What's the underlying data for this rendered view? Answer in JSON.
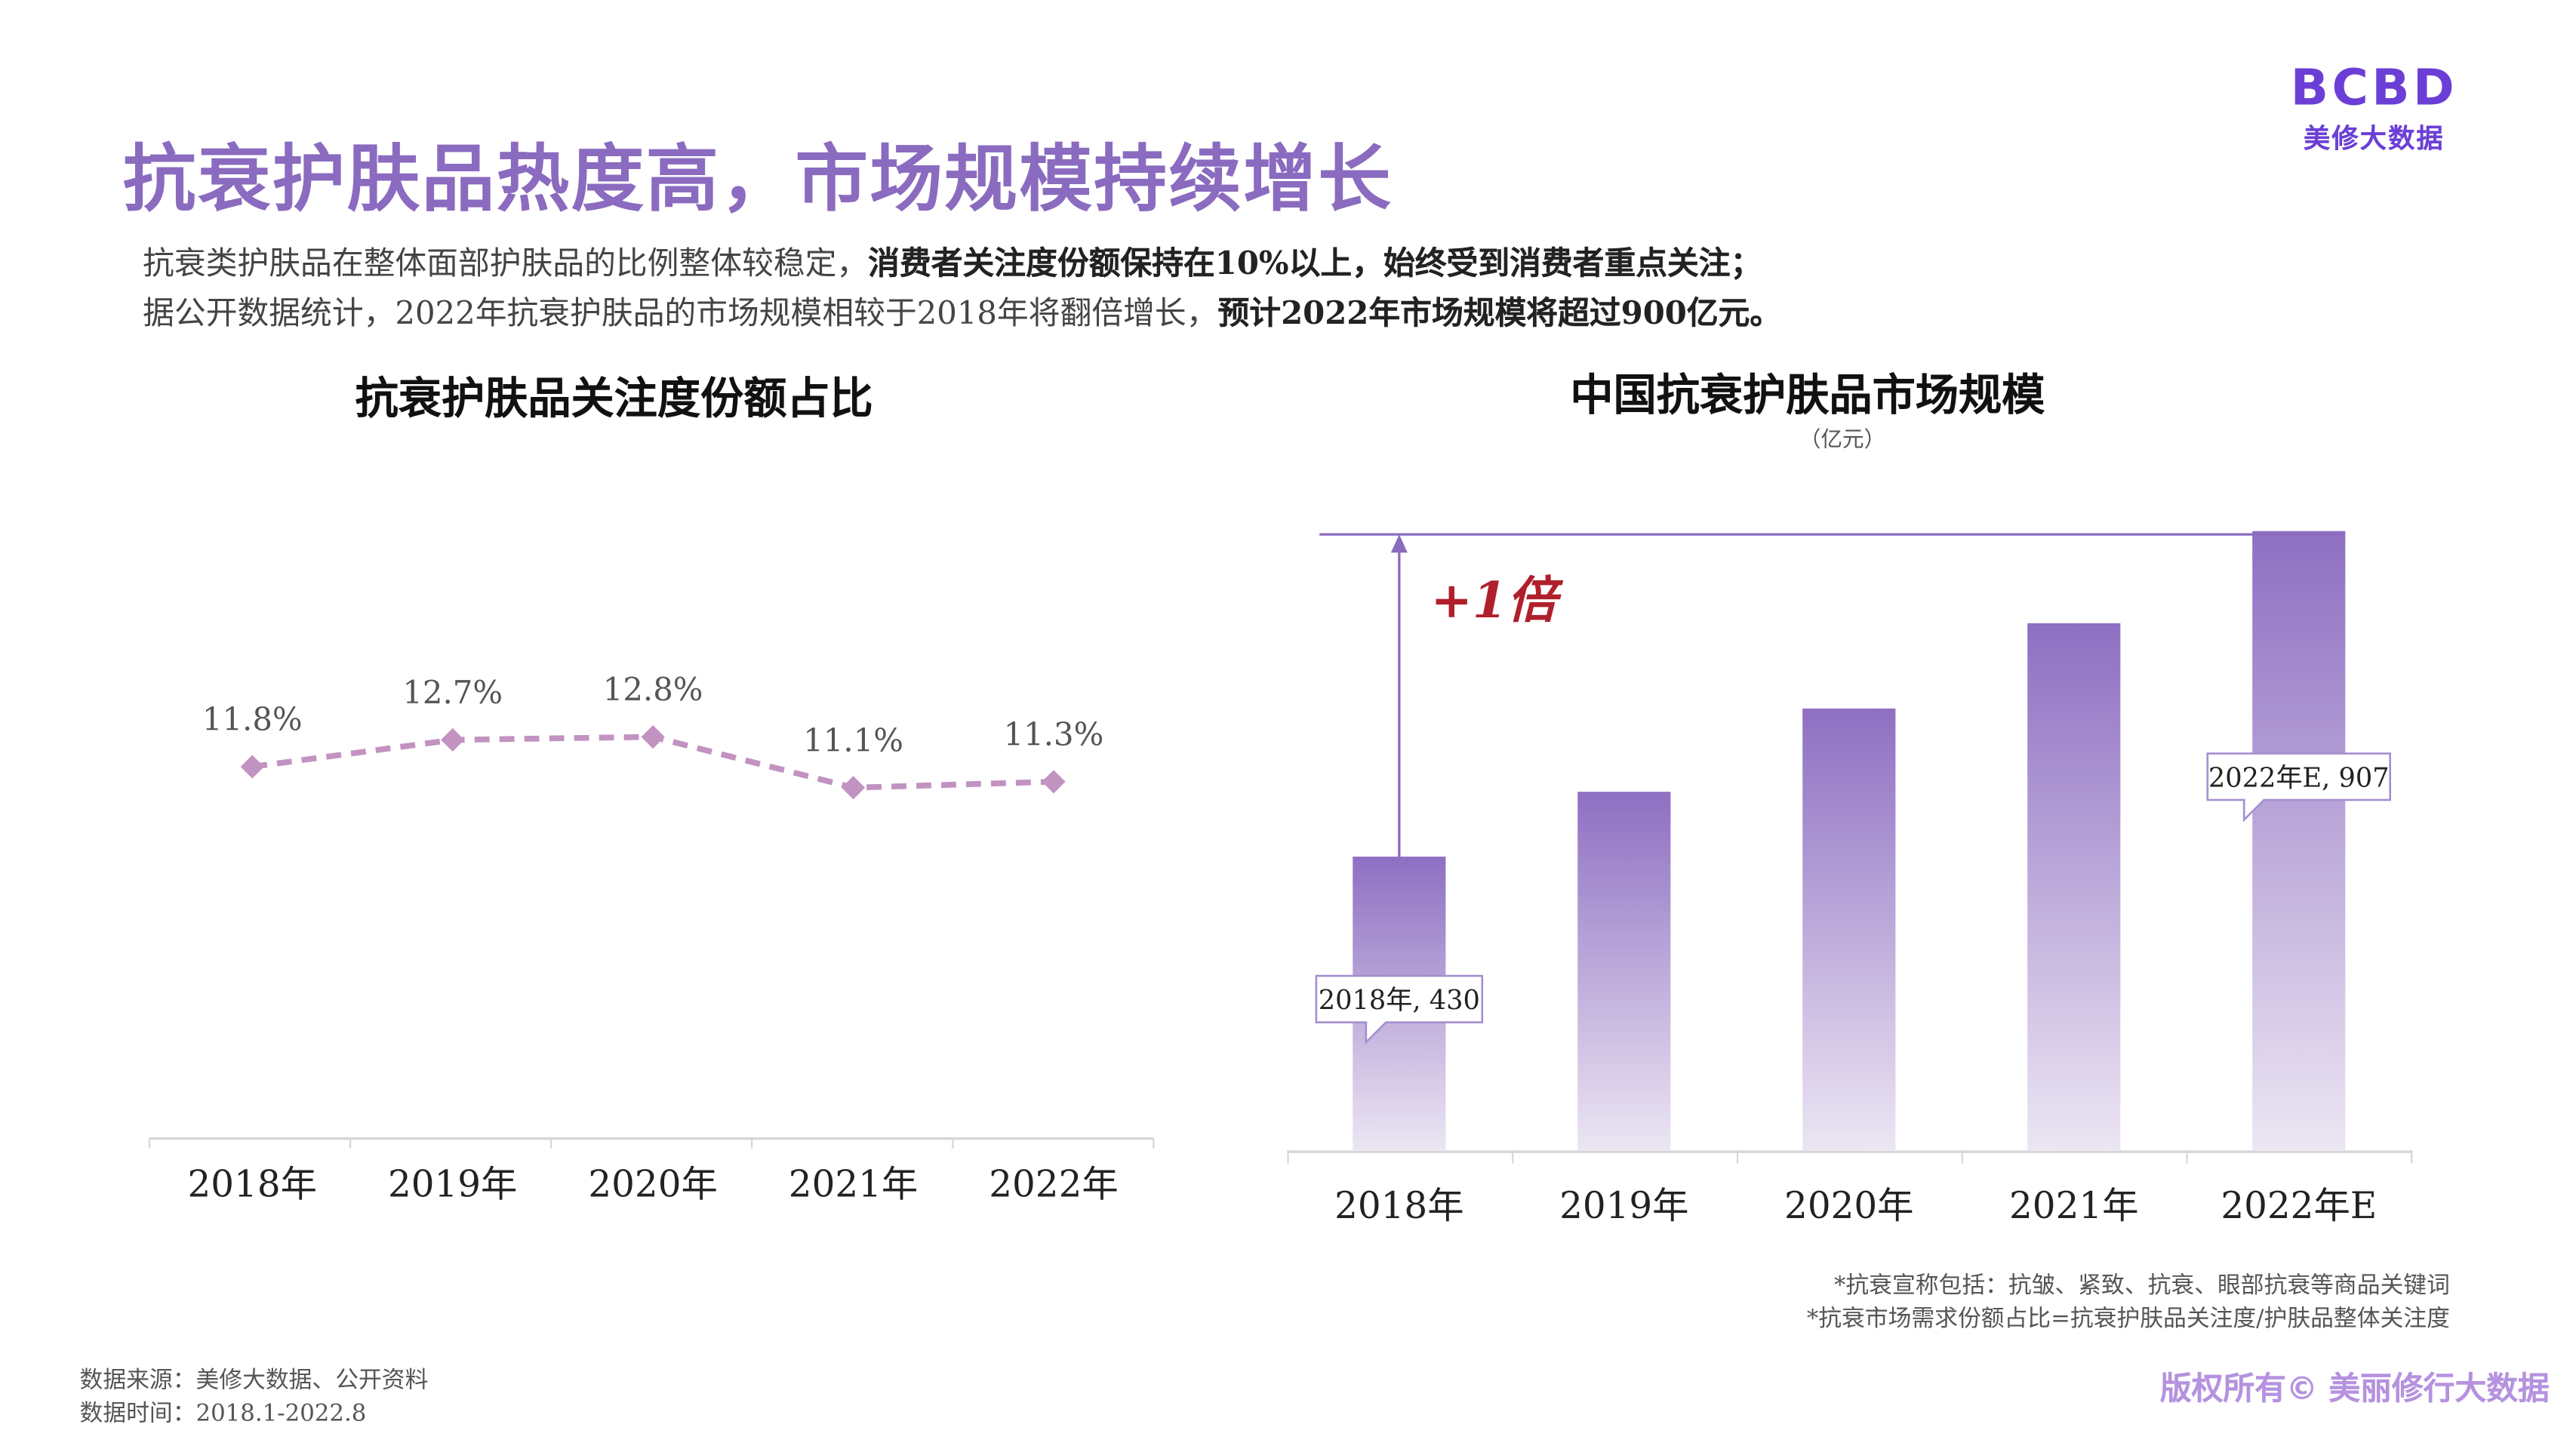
{
  "title": "抗衰护肤品热度高，市场规模持续增长",
  "description": {
    "line1_normal": "抗衰类护肤品在整体面部护肤品的比例整体较稳定，",
    "line1_bold": "消费者关注度份额保持在10%以上，始终受到消费者重点关注；",
    "line2_normal": "据公开数据统计，2022年抗衰护肤品的市场规模相较于2018年将翻倍增长，",
    "line2_bold": "预计2022年市场规模将超过900亿元。"
  },
  "logo": {
    "mark": "BCBD",
    "sub": "美修大数据"
  },
  "colors": {
    "accent": "#8a6bbf",
    "bar_top": "#8e6fc2",
    "bar_bottom": "#ece6f3",
    "line": "#c292c0",
    "highlight": "#b0202c"
  },
  "chart_data": [
    {
      "type": "line",
      "title": "抗衰护肤品关注度份额占比",
      "categories": [
        "2018年",
        "2019年",
        "2020年",
        "2021年",
        "2022年"
      ],
      "values": [
        11.8,
        12.7,
        12.8,
        11.1,
        11.3
      ],
      "data_labels": [
        "11.8%",
        "12.7%",
        "12.8%",
        "11.1%",
        "11.3%"
      ],
      "line_style": "dashed",
      "marker": "diamond",
      "grid": false
    },
    {
      "type": "bar",
      "title": "中国抗衰护肤品市场规模",
      "unit": "（亿元）",
      "categories": [
        "2018年",
        "2019年",
        "2020年",
        "2021年",
        "2022年E"
      ],
      "values": [
        430,
        525,
        647,
        772,
        907
      ],
      "callouts": [
        "2018年, 430",
        "2022年E, 907"
      ],
      "annotation": "+1倍",
      "grid": false
    }
  ],
  "footnotes": [
    "*抗衰宣称包括：抗皱、紧致、抗衰、眼部抗衰等商品关键词",
    "*抗衰市场需求份额占比=抗衰护肤品关注度/护肤品整体关注度"
  ],
  "source": {
    "line1": "数据来源：美修大数据、公开资料",
    "line2": "数据时间：2018.1-2022.8"
  },
  "copyright": "版权所有© 美丽修行大数据"
}
